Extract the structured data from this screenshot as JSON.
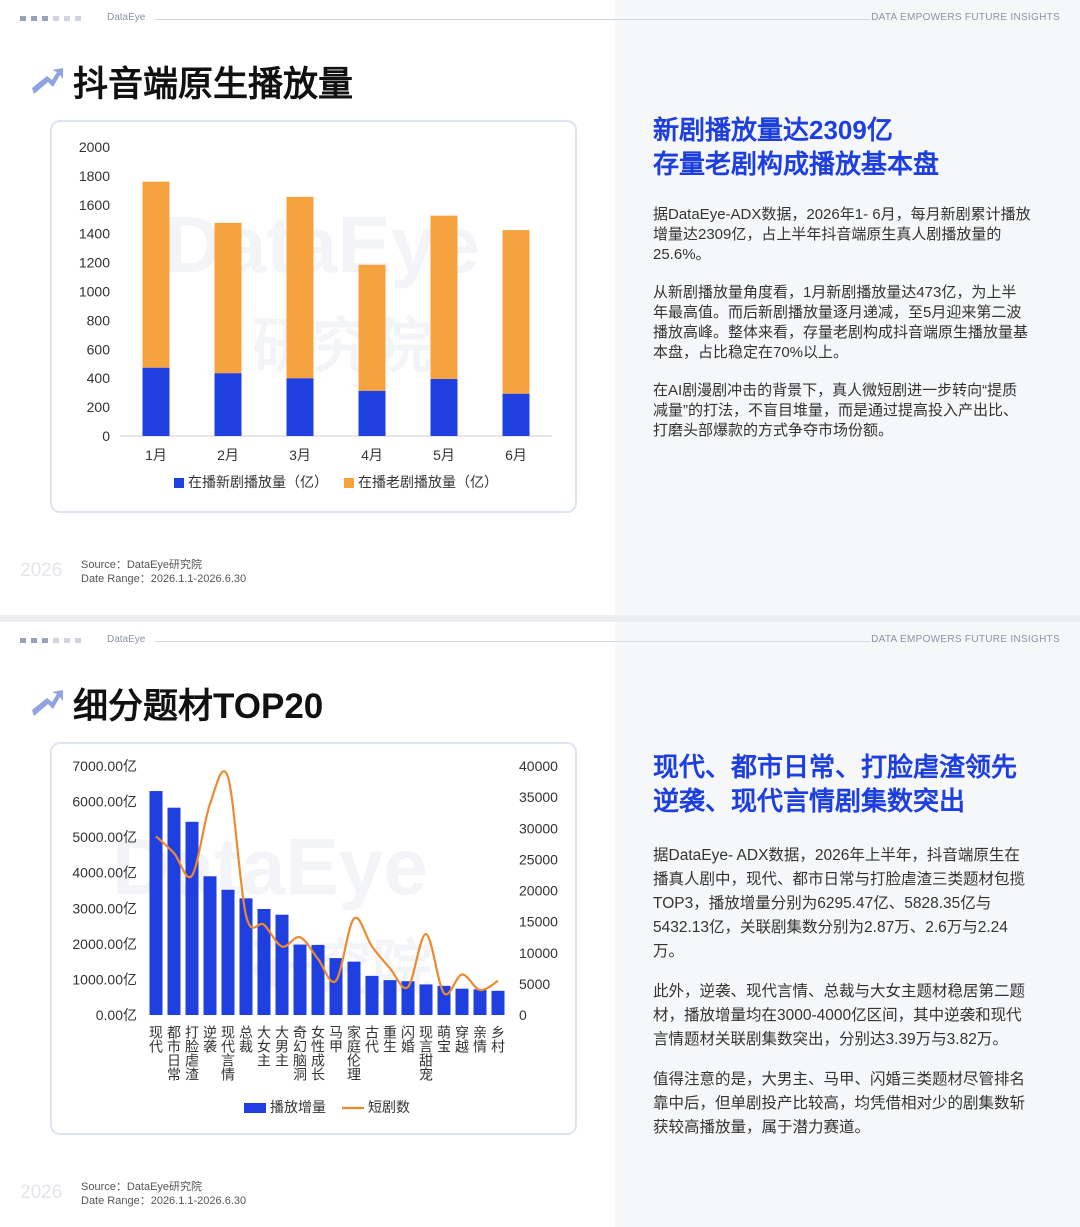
{
  "chart_data": [
    {
      "type": "bar",
      "stacked": true,
      "categories": [
        "1月",
        "2月",
        "3月",
        "4月",
        "5月",
        "6月"
      ],
      "series": [
        {
          "name": "在播新剧播放量（亿）",
          "color": "#1f3fe0",
          "values": [
            473,
            435,
            400,
            313,
            395,
            293
          ]
        },
        {
          "name": "在播老剧播放量（亿）",
          "color": "#f6a23e",
          "values": [
            1287,
            1040,
            1255,
            872,
            1130,
            1132
          ]
        }
      ],
      "ylim": [
        0,
        2000
      ],
      "yticks": [
        0,
        200,
        400,
        600,
        800,
        1000,
        1200,
        1400,
        1600,
        1800,
        2000
      ],
      "grid": false
    },
    {
      "type": "bar",
      "stacked": false,
      "categories": [
        "现代",
        "都市日常",
        "打脸虐渣",
        "逆袭",
        "现代言情",
        "总裁",
        "大女主",
        "大男主",
        "奇幻脑洞",
        "女性成长",
        "马甲",
        "家庭伦理",
        "古代",
        "重生",
        "闪婚",
        "现言甜宠",
        "萌宝",
        "穿越",
        "亲情",
        "乡村"
      ],
      "series": [
        {
          "name": "播放增量",
          "color": "#1f3fe0",
          "values": [
            6295.47,
            5828.35,
            5432.13,
            3900,
            3520,
            3280,
            2980,
            2820,
            1980,
            1970,
            1600,
            1500,
            1100,
            980,
            950,
            860,
            820,
            740,
            720,
            680
          ]
        },
        {
          "name": "短剧数",
          "color": "#ec8a30",
          "type": "line",
          "axis": "y2",
          "values": [
            28700,
            26000,
            22400,
            33900,
            38200,
            16000,
            14500,
            11000,
            12500,
            9000,
            5500,
            15500,
            11000,
            7500,
            4500,
            13000,
            3500,
            6500,
            4000,
            5500
          ]
        }
      ],
      "ylim": [
        0,
        7000
      ],
      "yticks": [
        {
          "value": 0,
          "label": "0.00亿"
        },
        {
          "value": 1000,
          "label": "1000.00亿"
        },
        {
          "value": 2000,
          "label": "2000.00亿"
        },
        {
          "value": 3000,
          "label": "3000.00亿"
        },
        {
          "value": 4000,
          "label": "4000.00亿"
        },
        {
          "value": 5000,
          "label": "5000.00亿"
        },
        {
          "value": 6000,
          "label": "6000.00亿"
        },
        {
          "value": 7000,
          "label": "7000.00亿"
        }
      ],
      "y2lim": [
        0,
        40000
      ],
      "y2ticks": [
        0,
        5000,
        10000,
        15000,
        20000,
        25000,
        30000,
        35000,
        40000
      ],
      "grid": false
    }
  ],
  "slides": [
    {
      "brand": "DataEye",
      "tagline": "DATA  EMPOWERS  FUTURE  INSIGHTS",
      "title": "抖音端原生播放量",
      "watermark": [
        "DataEye",
        "研究院"
      ],
      "headline": [
        "新剧播放量达2309亿",
        "存量老剧构成播放基本盘"
      ],
      "paragraphs": [
        "据DataEye-ADX数据，2026年1- 6月，每月新剧累计播放增量达2309亿，占上半年抖音端原生真人剧播放量的25.6%。",
        "从新剧播放量角度看，1月新剧播放量达473亿，为上半年最高值。而后新剧播放量逐月递减，至5月迎来第二波播放高峰。整体来看，存量老剧构成抖音端原生播放量基本盘，占比稳定在70%以上。",
        "在AI剧漫剧冲击的背景下，真人微短剧进一步转向“提质减量”的打法，不盲目堆量，而是通过提高投入产出比、打磨头部爆款的方式争夺市场份额。"
      ],
      "year": "2026",
      "source": "Source：DataEye研究院",
      "date_range": "Date Range：2026.1.1-2026.6.30"
    },
    {
      "brand": "DataEye",
      "tagline": "DATA  EMPOWERS  FUTURE  INSIGHTS",
      "title": "细分题材TOP20",
      "watermark": [
        "DataEye",
        "研究院"
      ],
      "headline": [
        "现代、都市日常、打脸虐渣领先",
        "逆袭、现代言情剧集数突出"
      ],
      "paragraphs": [
        "据DataEye- ADX数据，2026年上半年，抖音端原生在播真人剧中，现代、都市日常与打脸虐渣三类题材包揽TOP3，播放增量分别为6295.47亿、5828.35亿与5432.13亿，关联剧集数分别为2.87万、2.6万与2.24万。",
        "此外，逆袭、现代言情、总裁与大女主题材稳居第二题材，播放增量均在3000-4000亿区间，其中逆袭和现代言情题材关联剧集数突出，分别达3.39万与3.82万。",
        "值得注意的是，大男主、马甲、闪婚三类题材尽管排名靠中后，但单剧投产比较高，均凭借相对少的剧集数斩获较高播放量，属于潜力赛道。"
      ],
      "year": "2026",
      "source": "Source：DataEye研究院",
      "date_range": "Date Range：2026.1.1-2026.6.30"
    }
  ]
}
